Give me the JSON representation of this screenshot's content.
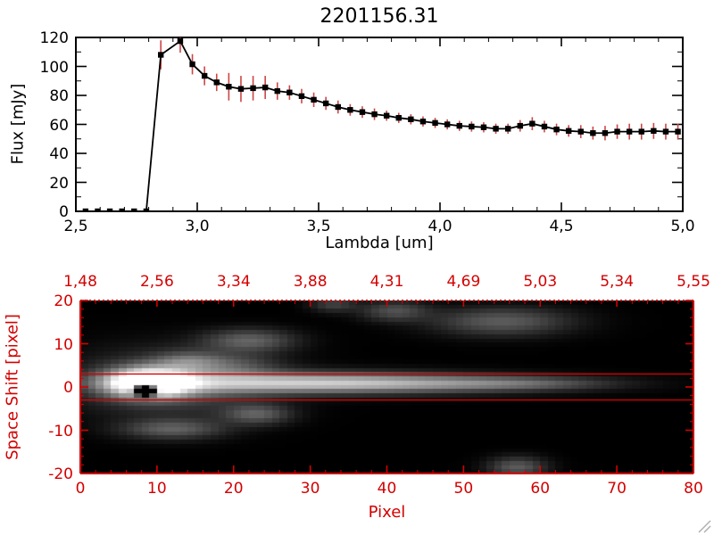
{
  "window": {
    "background": "#ffffff"
  },
  "chart_data": [
    {
      "type": "line",
      "title": "2201156.31",
      "xlabel": "Lambda [um]",
      "ylabel": "Flux [mJy]",
      "xlim": [
        2.5,
        5.0
      ],
      "ylim": [
        0,
        120
      ],
      "axis_color": "#000000",
      "line_color": "#000000",
      "error_bar_color": "#cc4646",
      "marker": "filled-square",
      "x_ticks": {
        "values": [
          2.5,
          3.0,
          3.5,
          4.0,
          4.5,
          5.0
        ],
        "labels": [
          "2,5",
          "3,0",
          "3,5",
          "4,0",
          "4,5",
          "5,0"
        ]
      },
      "y_ticks": {
        "values": [
          0,
          20,
          40,
          60,
          80,
          100,
          120
        ],
        "labels": [
          "0",
          "20",
          "40",
          "60",
          "80",
          "100",
          "120"
        ]
      },
      "series": [
        {
          "name": "flux",
          "x": [
            2.54,
            2.59,
            2.64,
            2.69,
            2.74,
            2.79,
            2.85,
            2.93,
            2.98,
            3.03,
            3.08,
            3.13,
            3.18,
            3.23,
            3.28,
            3.33,
            3.38,
            3.43,
            3.48,
            3.53,
            3.58,
            3.63,
            3.68,
            3.73,
            3.78,
            3.83,
            3.88,
            3.93,
            3.98,
            4.03,
            4.08,
            4.13,
            4.18,
            4.23,
            4.28,
            4.33,
            4.38,
            4.43,
            4.48,
            4.53,
            4.58,
            4.63,
            4.68,
            4.73,
            4.78,
            4.83,
            4.88,
            4.93,
            4.98
          ],
          "y": [
            0,
            0,
            0,
            0,
            0,
            0,
            108,
            117.5,
            101.5,
            93.5,
            89,
            86,
            84.5,
            85,
            85.5,
            83,
            82,
            79.5,
            77,
            74.5,
            72,
            70,
            68.5,
            67,
            66,
            64.5,
            63.5,
            62,
            61,
            60,
            59,
            58.5,
            58,
            57,
            57,
            59,
            60.5,
            58.5,
            56.5,
            55.5,
            55,
            54,
            54,
            55,
            55,
            55,
            55.5,
            55,
            55
          ],
          "yerr": [
            1.5,
            1.5,
            1.5,
            1.5,
            1.5,
            1.5,
            10,
            8,
            7,
            6.5,
            6,
            9.5,
            9,
            8.5,
            8,
            6,
            5,
            5,
            5,
            4.5,
            4.5,
            4,
            4,
            4,
            3.5,
            3.5,
            3.5,
            3.5,
            3.5,
            3.5,
            3.5,
            3.5,
            3.5,
            3.5,
            3.5,
            4,
            4.5,
            4,
            4,
            4,
            4.5,
            4.5,
            5,
            5,
            5.5,
            5.5,
            5.5,
            5.5,
            5.5
          ]
        }
      ]
    },
    {
      "type": "heatmap",
      "xlabel": "Pixel",
      "ylabel": "Space Shift [pixel]",
      "xlim": [
        0,
        80
      ],
      "ylim": [
        -20,
        20
      ],
      "axis_color": "#d40000",
      "background": "#000000",
      "x_ticks": {
        "values": [
          0,
          10,
          20,
          30,
          40,
          50,
          60,
          70,
          80
        ],
        "labels": [
          "0",
          "10",
          "20",
          "30",
          "40",
          "50",
          "60",
          "70",
          "80"
        ]
      },
      "y_ticks": {
        "values": [
          20,
          10,
          0,
          -10,
          -20
        ],
        "labels": [
          "20",
          "10",
          "0",
          "-10",
          "-20"
        ]
      },
      "top_axis": {
        "values": [
          0,
          10,
          20,
          30,
          40,
          50,
          60,
          70,
          80
        ],
        "labels": [
          "1,48",
          "2,56",
          "3,34",
          "3,88",
          "4,31",
          "4,69",
          "5,03",
          "5,34",
          "5,55"
        ]
      },
      "aperture_lines_y": [
        3,
        -3
      ],
      "blobs": [
        {
          "cx": 9,
          "cy": 1,
          "sx": 3.5,
          "sy": 2.2,
          "amp": 1.4
        },
        {
          "cx": 12,
          "cy": 1,
          "sx": 8,
          "sy": 5,
          "amp": 0.28
        },
        {
          "cx": 25,
          "cy": 1,
          "sx": 14,
          "sy": 1.7,
          "amp": 0.55
        },
        {
          "cx": 42,
          "cy": 0.8,
          "sx": 13,
          "sy": 1.4,
          "amp": 0.38
        },
        {
          "cx": 58,
          "cy": 0.8,
          "sx": 8,
          "sy": 1.1,
          "amp": 0.2
        },
        {
          "cx": 22,
          "cy": 11,
          "sx": 4,
          "sy": 1.8,
          "amp": 0.32
        },
        {
          "cx": 14,
          "cy": 6,
          "sx": 3,
          "sy": 1.6,
          "amp": 0.28
        },
        {
          "cx": 20,
          "cy": 5,
          "sx": 4,
          "sy": 2,
          "amp": 0.18
        },
        {
          "cx": 23,
          "cy": -6.5,
          "sx": 3,
          "sy": 1.6,
          "amp": 0.3
        },
        {
          "cx": 12,
          "cy": -10,
          "sx": 4.5,
          "sy": 1.6,
          "amp": 0.3
        },
        {
          "cx": 55,
          "cy": 15.5,
          "sx": 6,
          "sy": 2.2,
          "amp": 0.3
        },
        {
          "cx": 41,
          "cy": 18,
          "sx": 3,
          "sy": 1.6,
          "amp": 0.25
        },
        {
          "cx": 33,
          "cy": 19.5,
          "sx": 2,
          "sy": 1.2,
          "amp": 0.2
        },
        {
          "cx": 57,
          "cy": -19,
          "sx": 2.5,
          "sy": 1.6,
          "amp": 0.3
        },
        {
          "cx": 8.5,
          "cy": -0.5,
          "sx": 1.0,
          "sy": 1.0,
          "amp": -2.5
        }
      ]
    }
  ]
}
